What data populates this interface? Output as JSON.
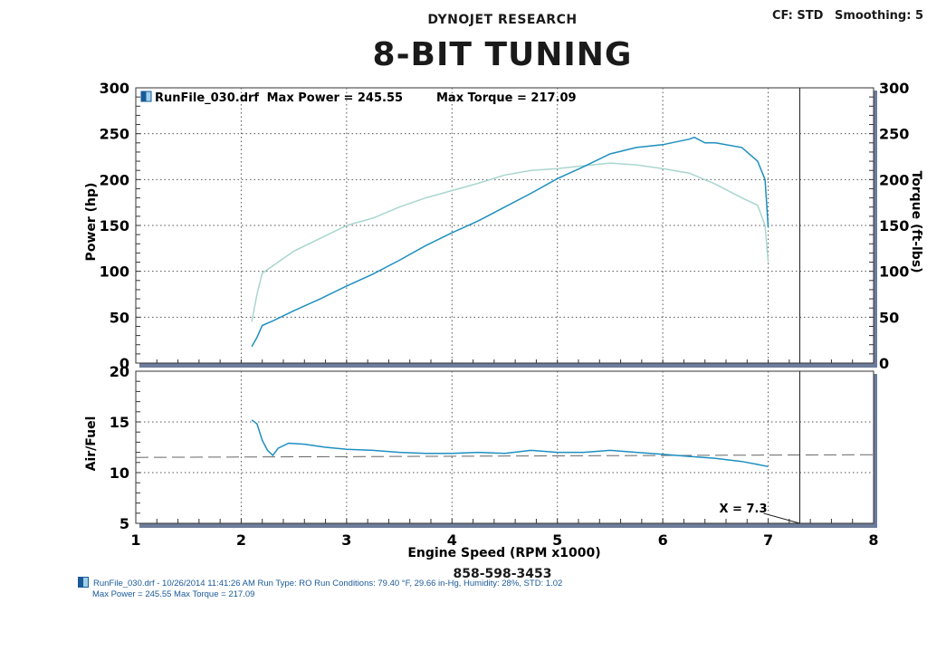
{
  "header": {
    "company": "DYNOJET RESEARCH",
    "cf": "CF: STD",
    "smoothing": "Smoothing: 5",
    "title": "8-BIT TUNING",
    "phone": "858-598-3453"
  },
  "legend": {
    "run_file": "RunFile_030.drf",
    "max_power_text": "Max Power = 245.55",
    "max_torque_text": "Max Torque = 217.09"
  },
  "footer": {
    "line1": "RunFile_030.drf - 10/26/2014 11:41:26 AM  Run Type: RO  Run Conditions: 79.40 °F, 29.66 in-Hg,  Humidity:  28%, STD: 1.02",
    "line2": "Max Power = 245.55  Max Torque = 217.09"
  },
  "cursor_label": "X = 7.3",
  "colors": {
    "power": "#1e8fc0",
    "torque": "#a9d6cf",
    "afr": "#1e8fc0",
    "grid": "#555555",
    "frame_shadow": "#6c7c9a"
  },
  "chart_data": [
    {
      "type": "line",
      "xlabel": "Engine Speed (RPM x1000)",
      "ylabel": "Power (hp)",
      "ylabel_right": "Torque (ft-lbs)",
      "xlim": [
        1,
        8
      ],
      "ylim": [
        0,
        300
      ],
      "x_ticks": [
        "1",
        "2",
        "3",
        "4",
        "5",
        "6",
        "7",
        "8"
      ],
      "y_ticks": [
        "0",
        "50",
        "100",
        "150",
        "200",
        "250",
        "300"
      ],
      "grid": true,
      "cursor_x": 7.3,
      "series": [
        {
          "name": "Power",
          "x": [
            2.1,
            2.15,
            2.2,
            2.3,
            2.5,
            2.75,
            3.0,
            3.25,
            3.5,
            3.75,
            4.0,
            4.25,
            4.5,
            4.75,
            5.0,
            5.25,
            5.5,
            5.75,
            6.0,
            6.25,
            6.3,
            6.4,
            6.5,
            6.75,
            6.9,
            6.97,
            7.0
          ],
          "values": [
            18,
            28,
            41,
            46,
            57,
            70,
            84,
            97,
            112,
            128,
            142,
            155,
            170,
            185,
            201,
            214,
            228,
            235,
            238,
            244,
            246,
            240,
            240,
            235,
            220,
            200,
            148
          ]
        },
        {
          "name": "Torque",
          "x": [
            2.1,
            2.15,
            2.2,
            2.3,
            2.5,
            2.75,
            3.0,
            3.25,
            3.5,
            3.75,
            4.0,
            4.25,
            4.5,
            4.75,
            5.0,
            5.25,
            5.5,
            5.75,
            6.0,
            6.25,
            6.5,
            6.75,
            6.9,
            6.97,
            7.0
          ],
          "values": [
            45,
            75,
            98,
            106,
            122,
            136,
            150,
            158,
            170,
            180,
            188,
            196,
            205,
            210,
            212,
            215,
            218,
            216,
            212,
            207,
            195,
            180,
            172,
            150,
            110
          ]
        }
      ]
    },
    {
      "type": "line",
      "ylabel": "Air/Fuel",
      "xlim": [
        1,
        8
      ],
      "ylim": [
        5,
        20
      ],
      "y_ticks": [
        "5",
        "10",
        "15",
        "20"
      ],
      "grid": true,
      "reference_line": 11.5,
      "cursor_x": 7.3,
      "series": [
        {
          "name": "Air/Fuel",
          "x": [
            2.1,
            2.15,
            2.2,
            2.25,
            2.3,
            2.35,
            2.45,
            2.6,
            2.8,
            3.0,
            3.25,
            3.5,
            3.75,
            4.0,
            4.25,
            4.5,
            4.75,
            5.0,
            5.25,
            5.5,
            5.75,
            6.0,
            6.25,
            6.5,
            6.75,
            6.9,
            7.0
          ],
          "values": [
            15.2,
            14.8,
            13.2,
            12.2,
            11.7,
            12.4,
            12.9,
            12.8,
            12.5,
            12.3,
            12.2,
            12.0,
            11.9,
            11.9,
            12.0,
            11.9,
            12.2,
            12.0,
            12.0,
            12.2,
            12.0,
            11.8,
            11.6,
            11.4,
            11.1,
            10.8,
            10.6
          ]
        }
      ]
    }
  ]
}
